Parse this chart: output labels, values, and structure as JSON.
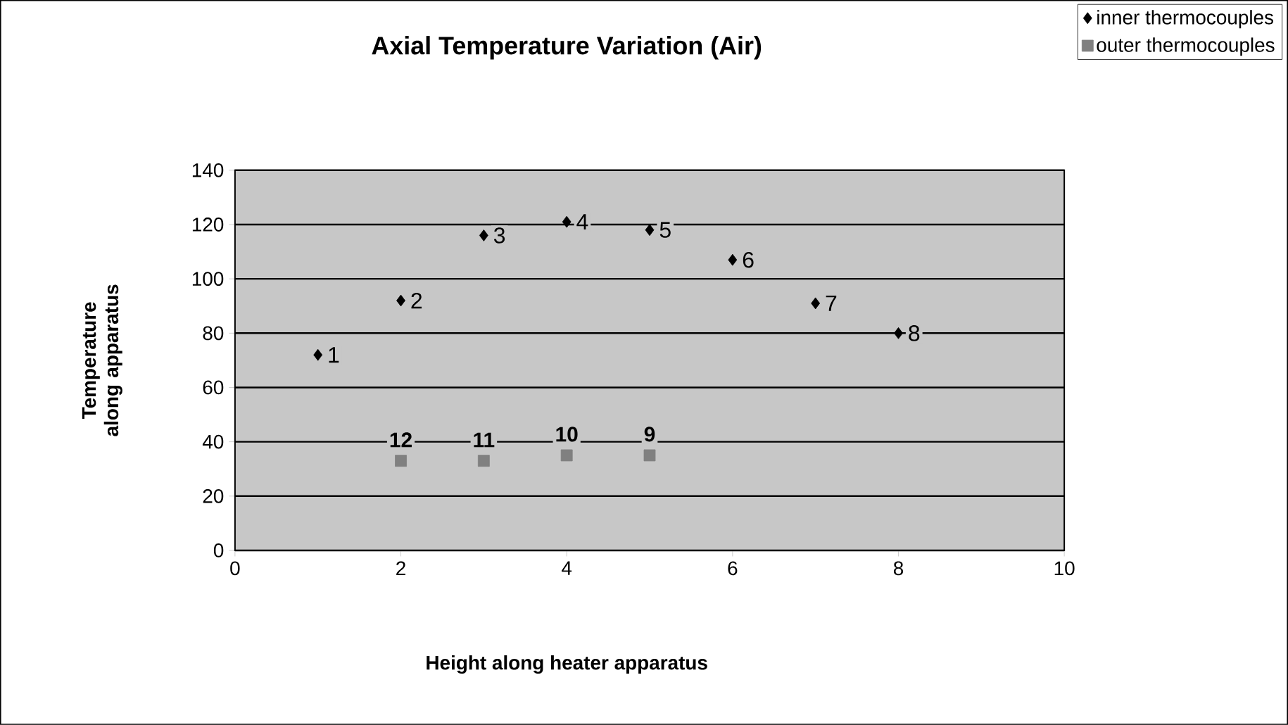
{
  "chart_data": {
    "type": "scatter",
    "title": "Axial Temperature Variation (Air)",
    "xlabel": "Height along heater apparatus",
    "ylabel": "Temperature along apparatus",
    "xlim": [
      0,
      10
    ],
    "xticks": [
      0,
      2,
      4,
      6,
      8,
      10
    ],
    "ylim": [
      0,
      140
    ],
    "yticks": [
      0,
      20,
      40,
      60,
      80,
      100,
      120,
      140
    ],
    "grid": "y",
    "legend": "top right",
    "series": [
      {
        "name": "inner thermocouples",
        "color": "#000000",
        "marker": "diamond",
        "x": [
          1,
          2,
          3,
          4,
          5,
          6,
          7,
          8
        ],
        "values": [
          72,
          92,
          116,
          121,
          118,
          107,
          91,
          80
        ]
      },
      {
        "name": "outer thermocouples",
        "color": "#808080",
        "marker": "square",
        "x": [
          2,
          3,
          4,
          5
        ],
        "values": [
          33,
          33,
          35,
          35
        ]
      }
    ],
    "annotations": [
      {
        "text": "1",
        "x": 1,
        "y": 72
      },
      {
        "text": "2",
        "x": 2,
        "y": 92
      },
      {
        "text": "3",
        "x": 3,
        "y": 116
      },
      {
        "text": "4",
        "x": 4,
        "y": 121
      },
      {
        "text": "5",
        "x": 5,
        "y": 118
      },
      {
        "text": "6",
        "x": 6,
        "y": 107
      },
      {
        "text": "7",
        "x": 7,
        "y": 91
      },
      {
        "text": "8",
        "x": 8,
        "y": 80
      },
      {
        "text": "9",
        "x": 5,
        "y": 35
      },
      {
        "text": "10",
        "x": 4,
        "y": 35
      },
      {
        "text": "11",
        "x": 3,
        "y": 33
      },
      {
        "text": "12",
        "x": 2,
        "y": 33
      }
    ]
  }
}
